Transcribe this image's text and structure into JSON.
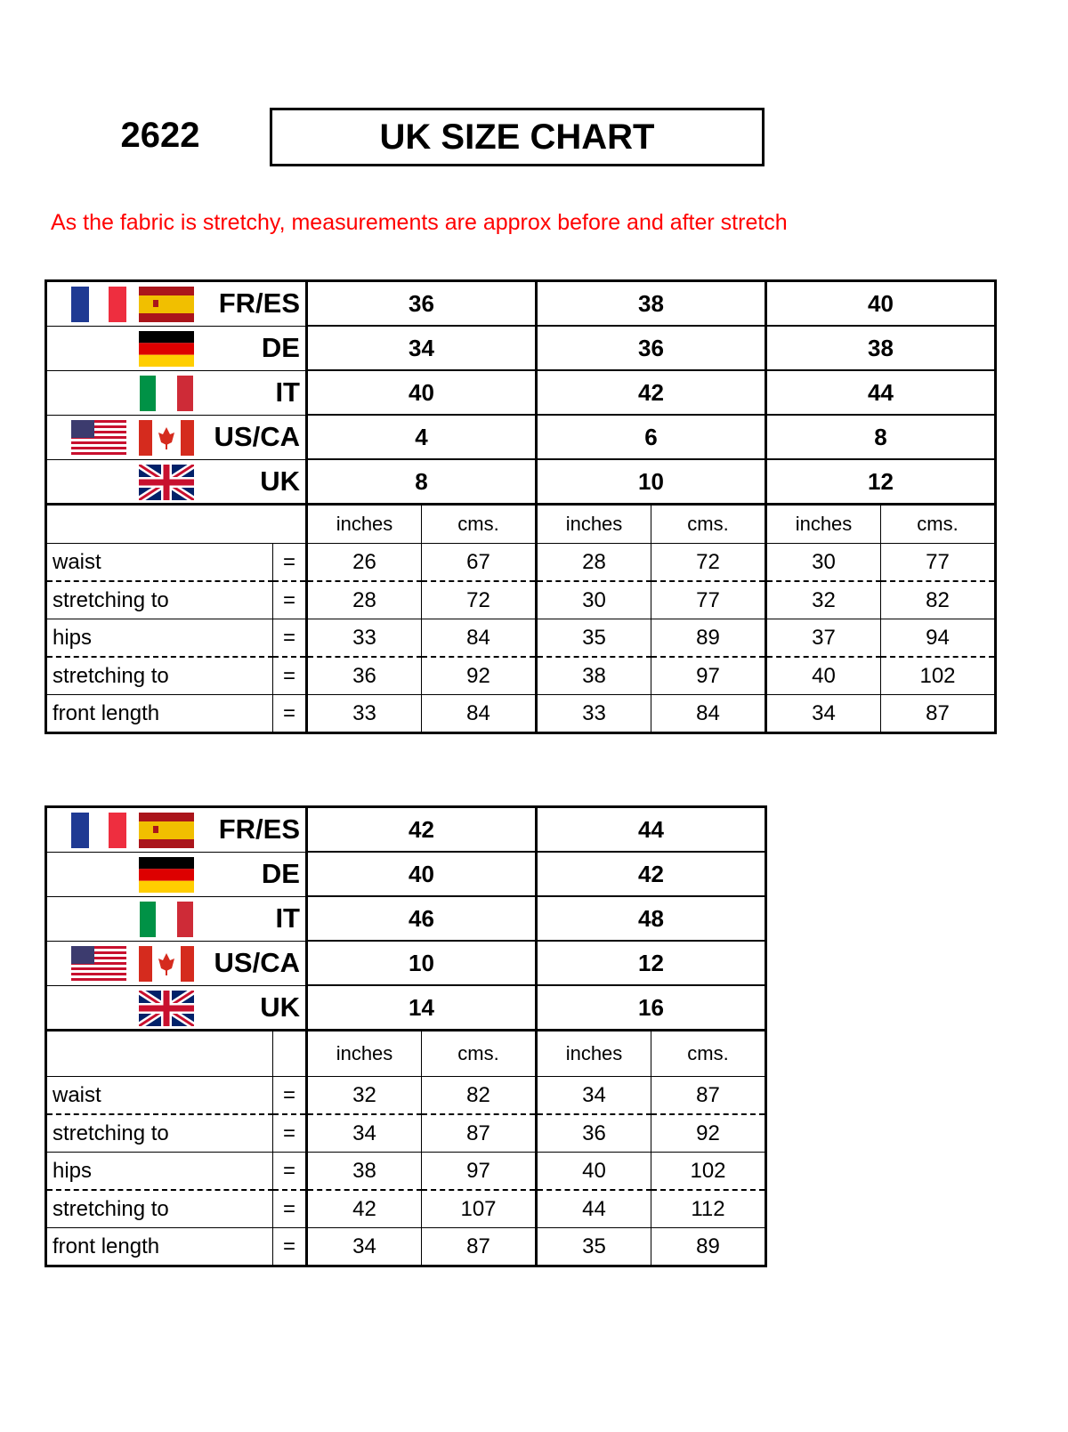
{
  "header": {
    "code": "2622",
    "title": "UK SIZE CHART",
    "note": "As the fabric is stretchy, measurements are approx before and after stretch",
    "note_color": "#ff0000"
  },
  "systems": [
    {
      "label": "FR/ES",
      "flags": [
        "france-flag",
        "spain-flag"
      ]
    },
    {
      "label": "DE",
      "flags": [
        "germany-flag"
      ]
    },
    {
      "label": "IT",
      "flags": [
        "italy-flag"
      ]
    },
    {
      "label": "US/CA",
      "flags": [
        "usa-flag",
        "canada-flag"
      ]
    },
    {
      "label": "UK",
      "flags": [
        "uk-flag"
      ]
    }
  ],
  "units": [
    "inches",
    "cms."
  ],
  "measures": [
    "waist",
    "stretching to",
    "hips",
    "stretching to",
    "front length"
  ],
  "eq": "=",
  "tables": [
    {
      "sizes": [
        {
          "FR/ES": "36",
          "DE": "34",
          "IT": "40",
          "US/CA": "4",
          "UK": "8",
          "values": [
            [
              "26",
              "67"
            ],
            [
              "28",
              "72"
            ],
            [
              "33",
              "84"
            ],
            [
              "36",
              "92"
            ],
            [
              "33",
              "84"
            ]
          ]
        },
        {
          "FR/ES": "38",
          "DE": "36",
          "IT": "42",
          "US/CA": "6",
          "UK": "10",
          "values": [
            [
              "28",
              "72"
            ],
            [
              "30",
              "77"
            ],
            [
              "35",
              "89"
            ],
            [
              "38",
              "97"
            ],
            [
              "33",
              "84"
            ]
          ]
        },
        {
          "FR/ES": "40",
          "DE": "38",
          "IT": "44",
          "US/CA": "8",
          "UK": "12",
          "values": [
            [
              "30",
              "77"
            ],
            [
              "32",
              "82"
            ],
            [
              "37",
              "94"
            ],
            [
              "40",
              "102"
            ],
            [
              "34",
              "87"
            ]
          ]
        }
      ]
    },
    {
      "sizes": [
        {
          "FR/ES": "42",
          "DE": "40",
          "IT": "46",
          "US/CA": "10",
          "UK": "14",
          "values": [
            [
              "32",
              "82"
            ],
            [
              "34",
              "87"
            ],
            [
              "38",
              "97"
            ],
            [
              "42",
              "107"
            ],
            [
              "34",
              "87"
            ]
          ]
        },
        {
          "FR/ES": "44",
          "DE": "42",
          "IT": "48",
          "US/CA": "12",
          "UK": "16",
          "values": [
            [
              "34",
              "87"
            ],
            [
              "36",
              "92"
            ],
            [
              "40",
              "102"
            ],
            [
              "44",
              "112"
            ],
            [
              "35",
              "89"
            ]
          ]
        }
      ]
    }
  ]
}
